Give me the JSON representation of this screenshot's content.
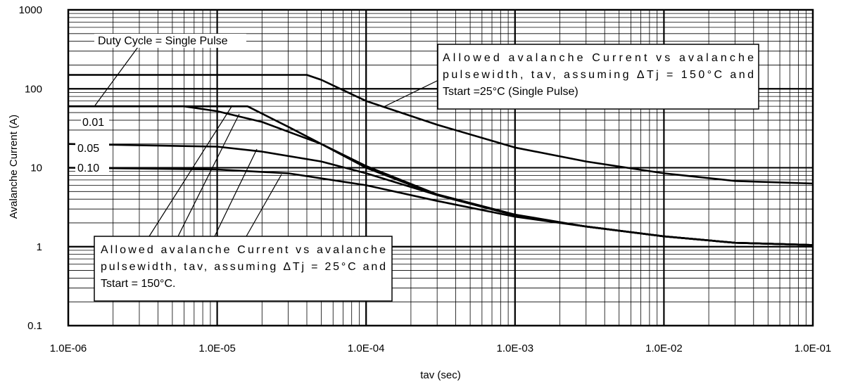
{
  "chart_data": {
    "type": "line",
    "xlabel": "tav (sec)",
    "ylabel": "Avalanche Current (A)",
    "x_scale": "log",
    "y_scale": "log",
    "xlim": [
      1e-06,
      0.1
    ],
    "ylim": [
      0.1,
      1000
    ],
    "grid": true,
    "x_tick_labels": [
      "1.0E-06",
      "1.0E-05",
      "1.0E-04",
      "1.0E-03",
      "1.0E-02",
      "1.0E-01"
    ],
    "y_tick_labels": [
      "0.1",
      "1",
      "10",
      "100",
      "1000"
    ],
    "series": [
      {
        "name": "Single Pulse (ΔTj = 150°C)",
        "points": [
          [
            1e-06,
            150
          ],
          [
            4e-05,
            150
          ],
          [
            5e-05,
            130
          ],
          [
            0.0001,
            70
          ],
          [
            0.0003,
            35
          ],
          [
            0.001,
            18
          ],
          [
            0.003,
            12
          ],
          [
            0.01,
            8.5
          ],
          [
            0.03,
            6.8
          ],
          [
            0.1,
            6.3
          ]
        ]
      },
      {
        "name": "Duty Cycle = Single Pulse",
        "points": [
          [
            1e-06,
            60
          ],
          [
            1.6e-05,
            60
          ],
          [
            3e-05,
            33
          ],
          [
            5e-05,
            20
          ],
          [
            0.0001,
            10
          ],
          [
            0.0003,
            4.5
          ],
          [
            0.001,
            2.5
          ],
          [
            0.003,
            1.8
          ],
          [
            0.01,
            1.35
          ],
          [
            0.03,
            1.12
          ],
          [
            0.1,
            1.05
          ]
        ]
      },
      {
        "name": "0.01",
        "points": [
          [
            1e-06,
            60
          ],
          [
            6e-06,
            60
          ],
          [
            1e-05,
            52
          ],
          [
            2e-05,
            38
          ],
          [
            5e-05,
            20
          ],
          [
            0.0001,
            10.5
          ],
          [
            0.0003,
            4.6
          ],
          [
            0.001,
            2.55
          ],
          [
            0.003,
            1.8
          ],
          [
            0.01,
            1.35
          ],
          [
            0.03,
            1.12
          ],
          [
            0.1,
            1.05
          ]
        ]
      },
      {
        "name": "0.05",
        "points": [
          [
            1e-06,
            20
          ],
          [
            1e-05,
            18.5
          ],
          [
            2e-05,
            16
          ],
          [
            5e-05,
            12
          ],
          [
            0.0001,
            8.5
          ],
          [
            0.0003,
            4.5
          ],
          [
            0.001,
            2.5
          ],
          [
            0.003,
            1.8
          ],
          [
            0.01,
            1.35
          ],
          [
            0.03,
            1.12
          ],
          [
            0.1,
            1.05
          ]
        ]
      },
      {
        "name": "0.10",
        "points": [
          [
            1e-06,
            10
          ],
          [
            1e-05,
            9.5
          ],
          [
            3e-05,
            8.5
          ],
          [
            0.0001,
            6
          ],
          [
            0.0003,
            3.8
          ],
          [
            0.001,
            2.4
          ],
          [
            0.003,
            1.8
          ],
          [
            0.01,
            1.35
          ],
          [
            0.03,
            1.12
          ],
          [
            0.1,
            1.05
          ]
        ]
      }
    ],
    "duty_labels": {
      "single": "Duty Cycle = Single Pulse",
      "d001": "0.01",
      "d005": "0.05",
      "d010": "0.10"
    },
    "annotations": {
      "upper": [
        "Allowed avalanche Current vs avalanche",
        "pulsewidth, tav, assuming ΔTj = 150°C and",
        "Tstart =25°C (Single Pulse)"
      ],
      "lower": [
        "Allowed avalanche Current vs avalanche",
        "pulsewidth, tav, assuming ΔTj = 25°C and",
        "Tstart = 150°C."
      ]
    }
  }
}
